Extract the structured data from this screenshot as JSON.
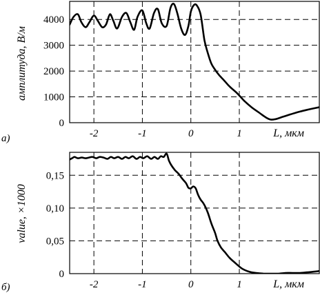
{
  "chart_data": [
    {
      "panel_label": "a)",
      "type": "line",
      "title": "",
      "xlabel": "L, мкм",
      "ylabel": "амплитуда, В/м",
      "xlim": [
        -2.5,
        2.65
      ],
      "ylim": [
        0,
        4700
      ],
      "grid": true,
      "x_ticks": [
        -2,
        -1,
        0,
        1
      ],
      "x_tick_labels": [
        "-2",
        "-1",
        "0",
        "1"
      ],
      "y_ticks": [
        0,
        1000,
        2000,
        3000,
        4000
      ],
      "y_tick_labels": [
        "0",
        "1000",
        "2000",
        "3000",
        "4000"
      ],
      "series": [
        {
          "x": [
            -2.5,
            -2.42,
            -2.33,
            -2.26,
            -2.17,
            -2.09,
            -2.0,
            -1.92,
            -1.83,
            -1.75,
            -1.67,
            -1.6,
            -1.52,
            -1.42,
            -1.33,
            -1.25,
            -1.17,
            -1.1,
            -1.0,
            -0.92,
            -0.85,
            -0.76,
            -0.68,
            -0.6,
            -0.5,
            -0.42,
            -0.35,
            -0.28,
            -0.2,
            -0.12,
            -0.05,
            0.0,
            0.06,
            0.12,
            0.2,
            0.28,
            0.35,
            0.42,
            0.5,
            0.58,
            0.68,
            0.8,
            0.95,
            1.1,
            1.25,
            1.4,
            1.55,
            1.65,
            1.75,
            1.9,
            2.05,
            2.25,
            2.45,
            2.65
          ],
          "y": [
            3800,
            4100,
            4200,
            3900,
            3700,
            3900,
            4150,
            3950,
            3700,
            3800,
            4200,
            3950,
            3650,
            4100,
            4250,
            3900,
            3600,
            4100,
            4350,
            3850,
            3650,
            4250,
            4400,
            3850,
            3750,
            4450,
            4600,
            4250,
            3650,
            3400,
            3750,
            4300,
            4550,
            4550,
            4200,
            3200,
            2700,
            2300,
            2050,
            1850,
            1650,
            1400,
            1150,
            850,
            600,
            400,
            200,
            120,
            140,
            230,
            320,
            430,
            520,
            600
          ]
        }
      ]
    },
    {
      "panel_label": "б)",
      "type": "line",
      "title": "",
      "xlabel": "L, мкм",
      "ylabel": "value, ×1000",
      "xlim": [
        -2.5,
        2.65
      ],
      "ylim": [
        0,
        0.185
      ],
      "grid": true,
      "x_ticks": [
        -2,
        -1,
        0,
        1
      ],
      "x_tick_labels": [
        "-2",
        "-1",
        "0",
        "1"
      ],
      "y_ticks": [
        0,
        0.05,
        0.1,
        0.15
      ],
      "y_tick_labels": [
        "0",
        "0,05",
        "0,10",
        "0,15"
      ],
      "series": [
        {
          "x": [
            -2.5,
            -2.45,
            -2.4,
            -2.33,
            -2.25,
            -2.17,
            -2.1,
            -2.03,
            -1.95,
            -1.88,
            -1.8,
            -1.72,
            -1.65,
            -1.58,
            -1.5,
            -1.42,
            -1.35,
            -1.28,
            -1.2,
            -1.12,
            -1.05,
            -0.98,
            -0.9,
            -0.82,
            -0.75,
            -0.68,
            -0.62,
            -0.56,
            -0.5,
            -0.45,
            -0.4,
            -0.33,
            -0.25,
            -0.18,
            -0.1,
            -0.05,
            0.0,
            0.05,
            0.1,
            0.15,
            0.2,
            0.27,
            0.35,
            0.42,
            0.5,
            0.55,
            0.62,
            0.7,
            0.8,
            0.92,
            1.05,
            1.2,
            1.35,
            1.5,
            1.65,
            1.8,
            1.95,
            2.1,
            2.25,
            2.4,
            2.55,
            2.65
          ],
          "y": [
            0.174,
            0.176,
            0.178,
            0.176,
            0.177,
            0.176,
            0.177,
            0.178,
            0.176,
            0.178,
            0.177,
            0.175,
            0.178,
            0.176,
            0.178,
            0.175,
            0.178,
            0.176,
            0.179,
            0.175,
            0.178,
            0.176,
            0.179,
            0.175,
            0.178,
            0.175,
            0.179,
            0.178,
            0.183,
            0.172,
            0.165,
            0.158,
            0.152,
            0.145,
            0.138,
            0.131,
            0.13,
            0.133,
            0.13,
            0.12,
            0.113,
            0.106,
            0.093,
            0.077,
            0.062,
            0.05,
            0.04,
            0.033,
            0.024,
            0.016,
            0.008,
            0.003,
            0.001,
            0.0,
            0.0,
            0.0,
            0.001,
            0.001,
            0.001,
            0.002,
            0.003,
            0.004
          ]
        }
      ]
    }
  ]
}
